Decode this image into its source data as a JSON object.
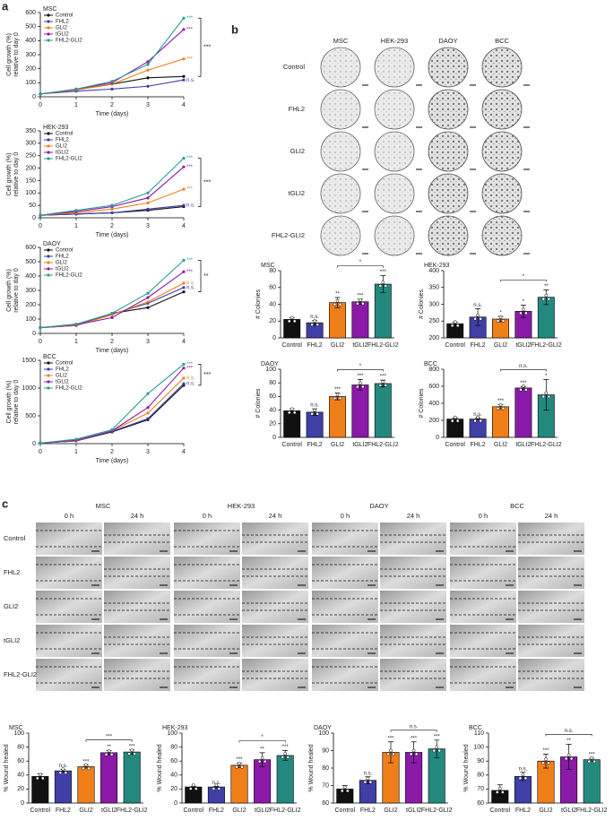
{
  "panel_labels": [
    "a",
    "b",
    "c"
  ],
  "panel_b_plates": {
    "columns": [
      "MSC",
      "HEK-293",
      "DAOY",
      "BCC"
    ],
    "rows": [
      "Control",
      "FHL2",
      "GLI2",
      "tGLI2",
      "FHL2-GLI2"
    ]
  },
  "panel_c_wounds": {
    "cell_lines": [
      "MSC",
      "HEK-293",
      "DAOY",
      "BCC"
    ],
    "times": [
      "0 h",
      "24 h"
    ],
    "rows": [
      "Control",
      "FHL2",
      "GLI2",
      "tGLI2",
      "FHL2-GLI2"
    ]
  },
  "chart_data": [
    {
      "type": "line",
      "title": "MSC",
      "xlabel": "Time (days)",
      "ylabel": [
        "Cell growth (%)",
        "relative to day 0"
      ],
      "x": [
        0,
        1,
        2,
        3,
        4
      ],
      "xlim": [
        0,
        4
      ],
      "xticks": [
        0,
        1,
        2,
        3,
        4
      ],
      "ylim": [
        0,
        600
      ],
      "yticks": [
        0,
        100,
        200,
        300,
        400,
        500,
        600
      ],
      "bracket": "***",
      "series": [
        {
          "name": "Control",
          "color": "#111111",
          "values": [
            20,
            50,
            90,
            135,
            145
          ],
          "label": null
        },
        {
          "name": "FHL2",
          "color": "#3c3ca8",
          "values": [
            20,
            40,
            55,
            75,
            120
          ],
          "label": "n.s."
        },
        {
          "name": "GLI2",
          "color": "#f07f1a",
          "values": [
            20,
            50,
            90,
            190,
            270
          ],
          "label": "***"
        },
        {
          "name": "tGLI2",
          "color": "#8b1aa8",
          "values": [
            20,
            55,
            100,
            250,
            480
          ],
          "label": "***"
        },
        {
          "name": "FHL2-GLI2",
          "color": "#2a9c95",
          "values": [
            20,
            55,
            110,
            230,
            560
          ],
          "label": "***"
        }
      ]
    },
    {
      "type": "line",
      "title": "HEK-293",
      "xlabel": "Time (days)",
      "ylabel": [
        "Cell growth (%)",
        "relative to day 0"
      ],
      "x": [
        0,
        1,
        2,
        3,
        4
      ],
      "xlim": [
        0,
        4
      ],
      "xticks": [
        0,
        1,
        2,
        3,
        4
      ],
      "ylim": [
        0,
        350
      ],
      "yticks": [
        0,
        50,
        100,
        150,
        200,
        250,
        300,
        350
      ],
      "bracket": "***",
      "series": [
        {
          "name": "Control",
          "color": "#111111",
          "values": [
            10,
            15,
            20,
            30,
            45
          ],
          "label": null
        },
        {
          "name": "FHL2",
          "color": "#3c3ca8",
          "values": [
            10,
            15,
            20,
            35,
            50
          ],
          "label": "n.s."
        },
        {
          "name": "GLI2",
          "color": "#f07f1a",
          "values": [
            10,
            20,
            35,
            60,
            115
          ],
          "label": "***"
        },
        {
          "name": "tGLI2",
          "color": "#8b1aa8",
          "values": [
            10,
            25,
            45,
            80,
            205
          ],
          "label": "***"
        },
        {
          "name": "FHL2-GLI2",
          "color": "#2a9c95",
          "values": [
            10,
            30,
            50,
            100,
            240
          ],
          "label": "***"
        }
      ]
    },
    {
      "type": "line",
      "title": "DAOY",
      "xlabel": "Time (days)",
      "ylabel": [
        "Cell growth (%)",
        "relative to day 0"
      ],
      "x": [
        0,
        1,
        2,
        3,
        4
      ],
      "xlim": [
        0,
        4
      ],
      "xticks": [
        0,
        1,
        2,
        3,
        4
      ],
      "ylim": [
        0,
        600
      ],
      "yticks": [
        0,
        100,
        200,
        300,
        400,
        500,
        600
      ],
      "bracket": "**",
      "series": [
        {
          "name": "Control",
          "color": "#111111",
          "values": [
            40,
            55,
            140,
            180,
            290
          ],
          "label": null
        },
        {
          "name": "FHL2",
          "color": "#3c3ca8",
          "values": [
            40,
            55,
            135,
            210,
            320
          ],
          "label": "n.s."
        },
        {
          "name": "GLI2",
          "color": "#f07f1a",
          "values": [
            40,
            55,
            130,
            220,
            350
          ],
          "label": "n.s."
        },
        {
          "name": "tGLI2",
          "color": "#8b1aa8",
          "values": [
            40,
            60,
            110,
            250,
            430
          ],
          "label": "***"
        },
        {
          "name": "FHL2-GLI2",
          "color": "#2a9c95",
          "values": [
            40,
            65,
            140,
            280,
            510
          ],
          "label": "***"
        }
      ]
    },
    {
      "type": "line",
      "title": "BCC",
      "xlabel": "Time (days)",
      "ylabel": [
        "Cell growth (%)",
        "relative to day 0"
      ],
      "x": [
        0,
        1,
        2,
        3,
        4
      ],
      "xlim": [
        0,
        4
      ],
      "xticks": [
        0,
        1,
        2,
        3,
        4
      ],
      "ylim": [
        0,
        1500
      ],
      "yticks": [
        0,
        500,
        1000,
        1500
      ],
      "bracket": "***",
      "series": [
        {
          "name": "Control",
          "color": "#111111",
          "values": [
            10,
            50,
            210,
            430,
            1050
          ],
          "label": null
        },
        {
          "name": "FHL2",
          "color": "#3c3ca8",
          "values": [
            10,
            50,
            220,
            450,
            1080
          ],
          "label": "n.s."
        },
        {
          "name": "GLI2",
          "color": "#f07f1a",
          "values": [
            10,
            55,
            230,
            550,
            1180
          ],
          "label": "n.s."
        },
        {
          "name": "tGLI2",
          "color": "#8b1aa8",
          "values": [
            10,
            60,
            230,
            650,
            1360
          ],
          "label": "***"
        },
        {
          "name": "FHL2-GLI2",
          "color": "#2a9c95",
          "values": [
            10,
            80,
            250,
            900,
            1430
          ],
          "label": "***"
        }
      ]
    },
    {
      "type": "bar",
      "title": "MSC",
      "ylabel": "# Colonies",
      "categories": [
        "Control",
        "FHL2",
        "GLI2",
        "tGLI2",
        "FHL2-GLI2"
      ],
      "colors": [
        "#111111",
        "#3f3fa6",
        "#f07f1a",
        "#8b1aa8",
        "#23897f"
      ],
      "values": [
        22,
        18,
        42,
        43,
        64
      ],
      "errors": [
        2,
        3,
        6,
        3,
        10
      ],
      "significance": [
        null,
        "n.s.",
        "**",
        "***",
        "***"
      ],
      "bracket": "*",
      "ylim": [
        0,
        80
      ],
      "yticks": [
        0,
        20,
        40,
        60,
        80
      ]
    },
    {
      "type": "bar",
      "title": "HEK-293",
      "ylabel": "# Colonies",
      "categories": [
        "Control",
        "FHL2",
        "GLI2",
        "tGLI2",
        "FHL2-GLI2"
      ],
      "colors": [
        "#111111",
        "#3f3fa6",
        "#f07f1a",
        "#8b1aa8",
        "#23897f"
      ],
      "values": [
        242,
        262,
        256,
        279,
        321
      ],
      "errors": [
        5,
        25,
        8,
        18,
        22
      ],
      "significance": [
        null,
        "n.s.",
        "*",
        "*",
        "**"
      ],
      "bracket": "*",
      "ylim": [
        200,
        400
      ],
      "yticks": [
        200,
        250,
        300,
        350,
        400
      ]
    },
    {
      "type": "bar",
      "title": "DAOY",
      "ylabel": "# Colonies",
      "categories": [
        "Control",
        "FHL2",
        "GLI2",
        "tGLI2",
        "FHL2-GLI2"
      ],
      "colors": [
        "#111111",
        "#3f3fa6",
        "#f07f1a",
        "#8b1aa8",
        "#23897f"
      ],
      "values": [
        39,
        37,
        60,
        77,
        79
      ],
      "errors": [
        3,
        5,
        5,
        8,
        5
      ],
      "significance": [
        null,
        "n.s.",
        "***",
        "***",
        "***"
      ],
      "bracket": "*",
      "ylim": [
        0,
        100
      ],
      "yticks": [
        0,
        20,
        40,
        60,
        80,
        100
      ]
    },
    {
      "type": "bar",
      "title": "BCC",
      "ylabel": "# Colonies",
      "categories": [
        "Control",
        "FHL2",
        "GLI2",
        "tGLI2",
        "FHL2-GLI2"
      ],
      "colors": [
        "#111111",
        "#3f3fa6",
        "#f07f1a",
        "#8b1aa8",
        "#23897f"
      ],
      "values": [
        215,
        215,
        360,
        580,
        500
      ],
      "errors": [
        10,
        10,
        25,
        15,
        180
      ],
      "significance": [
        null,
        "n.s.",
        "***",
        "***",
        "*"
      ],
      "bracket": "n.s.",
      "ylim": [
        0,
        800
      ],
      "yticks": [
        0,
        200,
        400,
        600,
        800
      ]
    },
    {
      "type": "bar",
      "title": "MSC",
      "ylabel": "% Wound healed",
      "categories": [
        "Control",
        "FHL2",
        "GLI2",
        "tGLI2",
        "FHL2-GLI2"
      ],
      "colors": [
        "#111111",
        "#3f3fa6",
        "#f07f1a",
        "#8b1aa8",
        "#23897f"
      ],
      "values": [
        38,
        46,
        52,
        72,
        73
      ],
      "errors": [
        4,
        2,
        2,
        3,
        3
      ],
      "significance": [
        null,
        "n.s.",
        "***",
        "**",
        "***"
      ],
      "bracket": "***",
      "ylim": [
        0,
        100
      ],
      "yticks": [
        0,
        20,
        40,
        60,
        80,
        100
      ]
    },
    {
      "type": "bar",
      "title": "HEK-293",
      "ylabel": "% Wound healed",
      "categories": [
        "Control",
        "FHL2",
        "GLI2",
        "tGLI2",
        "FHL2-GLI2"
      ],
      "colors": [
        "#111111",
        "#3f3fa6",
        "#f07f1a",
        "#8b1aa8",
        "#23897f"
      ],
      "values": [
        23,
        23,
        54,
        62,
        68
      ],
      "errors": [
        1,
        1,
        3,
        10,
        7
      ],
      "significance": [
        null,
        "n.s.",
        "***",
        "**",
        "***"
      ],
      "bracket": "*",
      "ylim": [
        0,
        100
      ],
      "yticks": [
        0,
        20,
        40,
        60,
        80,
        100
      ]
    },
    {
      "type": "bar",
      "title": "DAOY",
      "ylabel": "% Wound healed",
      "categories": [
        "Control",
        "FHL2",
        "GLI2",
        "tGLI2",
        "FHL2-GLI2"
      ],
      "colors": [
        "#111111",
        "#3f3fa6",
        "#f07f1a",
        "#8b1aa8",
        "#23897f"
      ],
      "values": [
        68,
        73,
        89,
        89,
        91
      ],
      "errors": [
        2,
        2,
        6,
        6,
        5
      ],
      "significance": [
        null,
        "n.s.",
        "***",
        "***",
        "***"
      ],
      "bracket": "n.s.",
      "ylim": [
        60,
        100
      ],
      "yticks": [
        60,
        70,
        80,
        90,
        100
      ]
    },
    {
      "type": "bar",
      "title": "BCC",
      "ylabel": "% Wound healed",
      "categories": [
        "Control",
        "FHL2",
        "GLI2",
        "tGLI2",
        "FHL2-GLI2"
      ],
      "colors": [
        "#111111",
        "#3f3fa6",
        "#f07f1a",
        "#8b1aa8",
        "#23897f"
      ],
      "values": [
        69,
        79,
        90,
        93,
        91
      ],
      "errors": [
        4,
        3,
        5,
        9,
        1
      ],
      "significance": [
        null,
        "n.s.",
        "***",
        "**",
        "***"
      ],
      "bracket": "n.s.",
      "ylim": [
        60,
        110
      ],
      "yticks": [
        60,
        70,
        80,
        90,
        100,
        110
      ]
    }
  ]
}
